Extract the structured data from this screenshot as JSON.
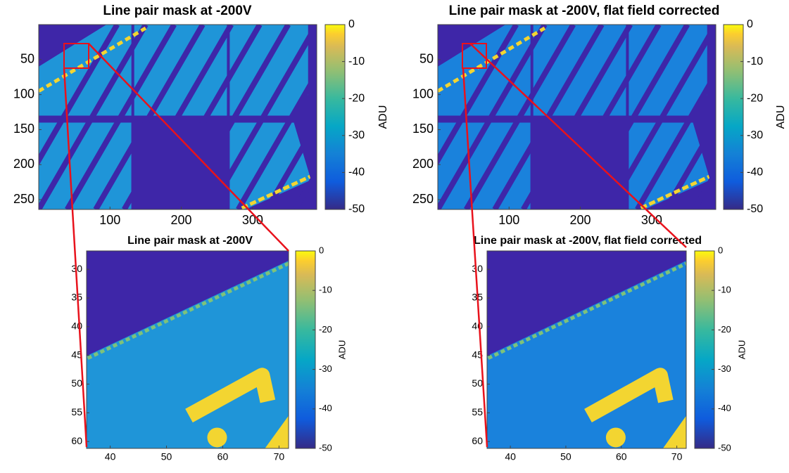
{
  "chart_data": [
    {
      "type": "heatmap",
      "title": "Line pair mask at -200V",
      "xlim": [
        0,
        390
      ],
      "ylim": [
        0,
        264
      ],
      "xticks": [
        100,
        200,
        300
      ],
      "yticks": [
        50,
        100,
        150,
        200,
        250
      ],
      "colorbar": {
        "label": "ADU",
        "lim": [
          -50,
          0
        ],
        "ticks": [
          0,
          -10,
          -20,
          -30,
          -40,
          -50
        ]
      }
    },
    {
      "type": "heatmap",
      "title": "Line pair mask at -200V, flat field corrected",
      "xlim": [
        0,
        390
      ],
      "ylim": [
        0,
        264
      ],
      "xticks": [
        100,
        200,
        300
      ],
      "yticks": [
        50,
        100,
        150,
        200,
        250
      ],
      "colorbar": {
        "label": "ADU",
        "lim": [
          -50,
          0
        ],
        "ticks": [
          0,
          -10,
          -20,
          -30,
          -40,
          -50
        ]
      }
    },
    {
      "type": "heatmap",
      "title": "Line pair mask at -200V",
      "xlim": [
        35.8,
        71.7
      ],
      "ylim": [
        26.8,
        61.2
      ],
      "xticks": [
        40,
        50,
        60,
        70
      ],
      "yticks": [
        30,
        35,
        40,
        45,
        50,
        55,
        60
      ],
      "colorbar": {
        "label": "ADU",
        "lim": [
          -50,
          0
        ],
        "ticks": [
          0,
          -10,
          -20,
          -30,
          -40,
          -50
        ]
      }
    },
    {
      "type": "heatmap",
      "title": "Line pair mask at -200V, flat field corrected",
      "xlim": [
        35.8,
        71.7
      ],
      "ylim": [
        26.8,
        61.2
      ],
      "xticks": [
        40,
        50,
        60,
        70
      ],
      "yticks": [
        30,
        35,
        40,
        45,
        50,
        55,
        60
      ],
      "colorbar": {
        "label": "ADU",
        "lim": [
          -50,
          0
        ],
        "ticks": [
          0,
          -10,
          -20,
          -30,
          -40,
          -50
        ]
      }
    }
  ]
}
